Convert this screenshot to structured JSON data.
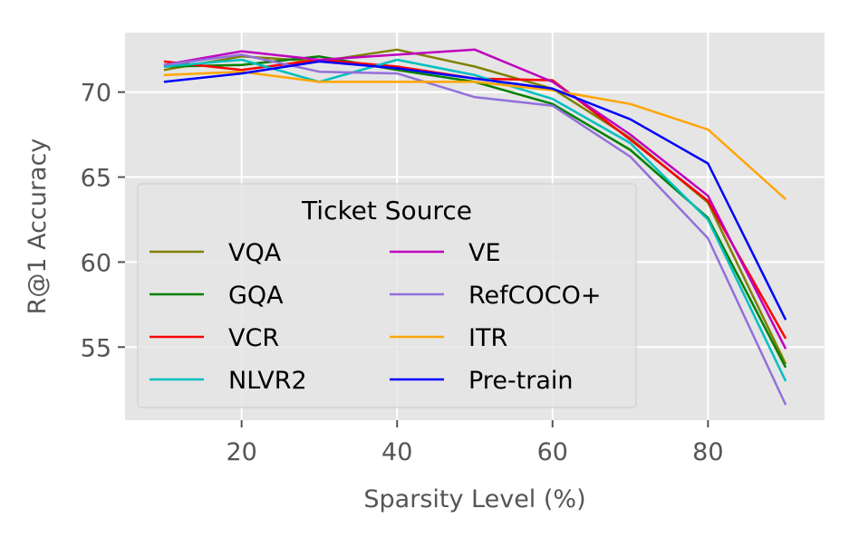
{
  "chart_data": {
    "type": "line",
    "xlabel": "Sparsity Level (%)",
    "ylabel": "R@1 Accuracy",
    "xlim": [
      5,
      95
    ],
    "ylim": [
      50.7,
      73.5
    ],
    "xticks": [
      20,
      40,
      60,
      80
    ],
    "yticks": [
      55,
      60,
      65,
      70
    ],
    "grid": true,
    "legend": {
      "title": "Ticket Source",
      "position": "lower-left",
      "columns": 2
    },
    "x": [
      10,
      20,
      30,
      40,
      50,
      60,
      70,
      80,
      90
    ],
    "series": [
      {
        "name": "VQA",
        "color": "#808000",
        "values": [
          71.3,
          72.1,
          71.8,
          72.5,
          71.5,
          70.2,
          67.3,
          63.5,
          54.0
        ]
      },
      {
        "name": "GQA",
        "color": "#008000",
        "values": [
          71.5,
          71.6,
          72.1,
          71.3,
          70.6,
          69.3,
          66.6,
          62.6,
          53.8
        ]
      },
      {
        "name": "VCR",
        "color": "#ff0000",
        "values": [
          71.8,
          71.3,
          71.9,
          71.5,
          70.8,
          70.7,
          67.2,
          63.6,
          55.5
        ]
      },
      {
        "name": "NLVR2",
        "color": "#00bfbf",
        "values": [
          71.5,
          71.9,
          70.6,
          71.9,
          71.0,
          69.6,
          67.0,
          62.5,
          53.0
        ]
      },
      {
        "name": "VE",
        "color": "#bf00bf",
        "values": [
          71.6,
          72.4,
          71.9,
          72.2,
          72.5,
          70.6,
          67.5,
          63.9,
          54.9
        ]
      },
      {
        "name": "RefCOCO+",
        "color": "#9370db",
        "values": [
          71.6,
          72.2,
          71.2,
          71.1,
          69.7,
          69.2,
          66.2,
          61.4,
          51.6
        ]
      },
      {
        "name": "ITR",
        "color": "#ffa500",
        "values": [
          71.0,
          71.2,
          70.6,
          70.6,
          70.6,
          70.1,
          69.3,
          67.8,
          63.7
        ]
      },
      {
        "name": "Pre-train",
        "color": "#0000ff",
        "values": [
          70.6,
          71.1,
          71.8,
          71.4,
          70.8,
          70.2,
          68.4,
          65.8,
          56.6
        ]
      }
    ]
  }
}
